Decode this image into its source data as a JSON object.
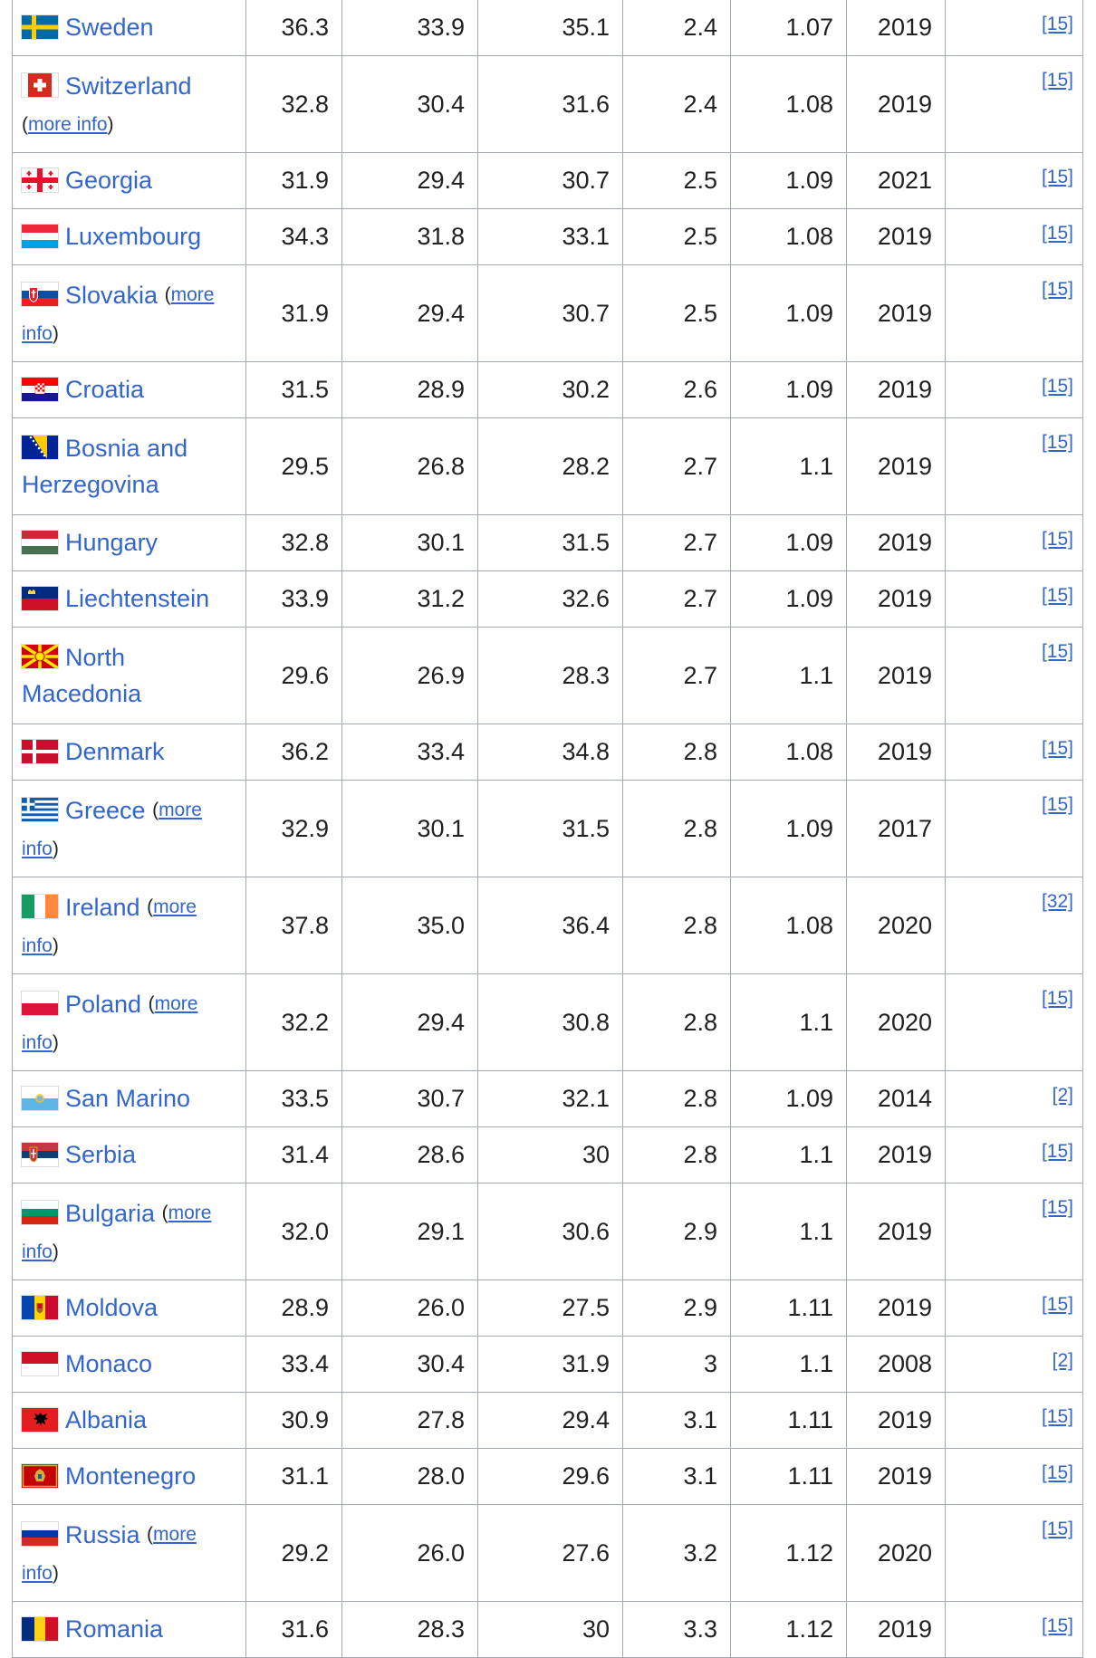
{
  "rows": [
    {
      "flag": "sweden",
      "country": "Sweden",
      "more": false,
      "v": [
        "36.3",
        "33.9",
        "35.1",
        "2.4",
        "1.07",
        "2019"
      ],
      "ref": "[15]"
    },
    {
      "flag": "switzerland",
      "country": "Switzerland",
      "more": true,
      "v": [
        "32.8",
        "30.4",
        "31.6",
        "2.4",
        "1.08",
        "2019"
      ],
      "ref": "[15]"
    },
    {
      "flag": "georgia",
      "country": "Georgia",
      "more": false,
      "v": [
        "31.9",
        "29.4",
        "30.7",
        "2.5",
        "1.09",
        "2021"
      ],
      "ref": "[15]"
    },
    {
      "flag": "luxembourg",
      "country": "Luxembourg",
      "more": false,
      "v": [
        "34.3",
        "31.8",
        "33.1",
        "2.5",
        "1.08",
        "2019"
      ],
      "ref": "[15]"
    },
    {
      "flag": "slovakia",
      "country": "Slovakia",
      "more": true,
      "v": [
        "31.9",
        "29.4",
        "30.7",
        "2.5",
        "1.09",
        "2019"
      ],
      "ref": "[15]"
    },
    {
      "flag": "croatia",
      "country": "Croatia",
      "more": false,
      "v": [
        "31.5",
        "28.9",
        "30.2",
        "2.6",
        "1.09",
        "2019"
      ],
      "ref": "[15]"
    },
    {
      "flag": "bosnia",
      "country": "Bosnia and Herzegovina",
      "more": false,
      "v": [
        "29.5",
        "26.8",
        "28.2",
        "2.7",
        "1.1",
        "2019"
      ],
      "ref": "[15]"
    },
    {
      "flag": "hungary",
      "country": "Hungary",
      "more": false,
      "v": [
        "32.8",
        "30.1",
        "31.5",
        "2.7",
        "1.09",
        "2019"
      ],
      "ref": "[15]"
    },
    {
      "flag": "liechtenstein",
      "country": "Liechtenstein",
      "more": false,
      "v": [
        "33.9",
        "31.2",
        "32.6",
        "2.7",
        "1.09",
        "2019"
      ],
      "ref": "[15]"
    },
    {
      "flag": "macedonia",
      "country": "North Macedonia",
      "more": false,
      "v": [
        "29.6",
        "26.9",
        "28.3",
        "2.7",
        "1.1",
        "2019"
      ],
      "ref": "[15]"
    },
    {
      "flag": "denmark",
      "country": "Denmark",
      "more": false,
      "v": [
        "36.2",
        "33.4",
        "34.8",
        "2.8",
        "1.08",
        "2019"
      ],
      "ref": "[15]"
    },
    {
      "flag": "greece",
      "country": "Greece",
      "more": true,
      "v": [
        "32.9",
        "30.1",
        "31.5",
        "2.8",
        "1.09",
        "2017"
      ],
      "ref": "[15]"
    },
    {
      "flag": "ireland",
      "country": "Ireland",
      "more": true,
      "v": [
        "37.8",
        "35.0",
        "36.4",
        "2.8",
        "1.08",
        "2020"
      ],
      "ref": "[32]"
    },
    {
      "flag": "poland",
      "country": "Poland",
      "more": true,
      "v": [
        "32.2",
        "29.4",
        "30.8",
        "2.8",
        "1.1",
        "2020"
      ],
      "ref": "[15]"
    },
    {
      "flag": "sanmarino",
      "country": "San Marino",
      "more": false,
      "v": [
        "33.5",
        "30.7",
        "32.1",
        "2.8",
        "1.09",
        "2014"
      ],
      "ref": "[2]"
    },
    {
      "flag": "serbia",
      "country": "Serbia",
      "more": false,
      "v": [
        "31.4",
        "28.6",
        "30",
        "2.8",
        "1.1",
        "2019"
      ],
      "ref": "[15]"
    },
    {
      "flag": "bulgaria",
      "country": "Bulgaria",
      "more": true,
      "v": [
        "32.0",
        "29.1",
        "30.6",
        "2.9",
        "1.1",
        "2019"
      ],
      "ref": "[15]"
    },
    {
      "flag": "moldova",
      "country": "Moldova",
      "more": false,
      "v": [
        "28.9",
        "26.0",
        "27.5",
        "2.9",
        "1.11",
        "2019"
      ],
      "ref": "[15]"
    },
    {
      "flag": "monaco",
      "country": "Monaco",
      "more": false,
      "v": [
        "33.4",
        "30.4",
        "31.9",
        "3",
        "1.1",
        "2008"
      ],
      "ref": "[2]"
    },
    {
      "flag": "albania",
      "country": "Albania",
      "more": false,
      "v": [
        "30.9",
        "27.8",
        "29.4",
        "3.1",
        "1.11",
        "2019"
      ],
      "ref": "[15]"
    },
    {
      "flag": "montenegro",
      "country": "Montenegro",
      "more": false,
      "v": [
        "31.1",
        "28.0",
        "29.6",
        "3.1",
        "1.11",
        "2019"
      ],
      "ref": "[15]"
    },
    {
      "flag": "russia",
      "country": "Russia",
      "more": true,
      "v": [
        "29.2",
        "26.0",
        "27.6",
        "3.2",
        "1.12",
        "2020"
      ],
      "ref": "[15]"
    },
    {
      "flag": "romania",
      "country": "Romania",
      "more": false,
      "v": [
        "31.6",
        "28.3",
        "30",
        "3.3",
        "1.12",
        "2019"
      ],
      "ref": "[15]"
    }
  ],
  "more_info_label": "more info",
  "more_label": "more",
  "info_label": "info",
  "colors": {
    "link": "#3366cc",
    "border": "#a2a9b1",
    "text": "#202122"
  }
}
